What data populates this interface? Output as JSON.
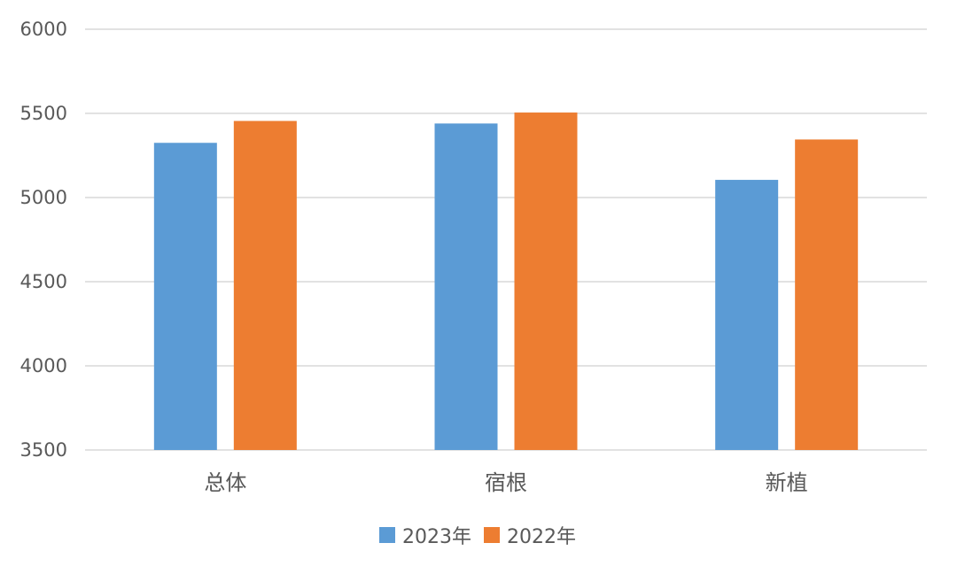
{
  "chart_data": {
    "type": "bar",
    "title": "",
    "xlabel": "",
    "ylabel": "",
    "categories": [
      "总体",
      "宿根",
      "新植"
    ],
    "series": [
      {
        "name": "2023年",
        "color": "#5b9bd5",
        "values": [
          5325,
          5440,
          5105
        ]
      },
      {
        "name": "2022年",
        "color": "#ed7d31",
        "values": [
          5455,
          5505,
          5345
        ]
      }
    ],
    "ylim": [
      3500,
      6000
    ],
    "yticks": [
      3500,
      4000,
      4500,
      5000,
      5500,
      6000
    ],
    "ytick_labels": [
      "3500",
      "4000",
      "4500",
      "5000",
      "5500",
      "6000"
    ],
    "grid": true,
    "legend_position": "bottom-center"
  }
}
